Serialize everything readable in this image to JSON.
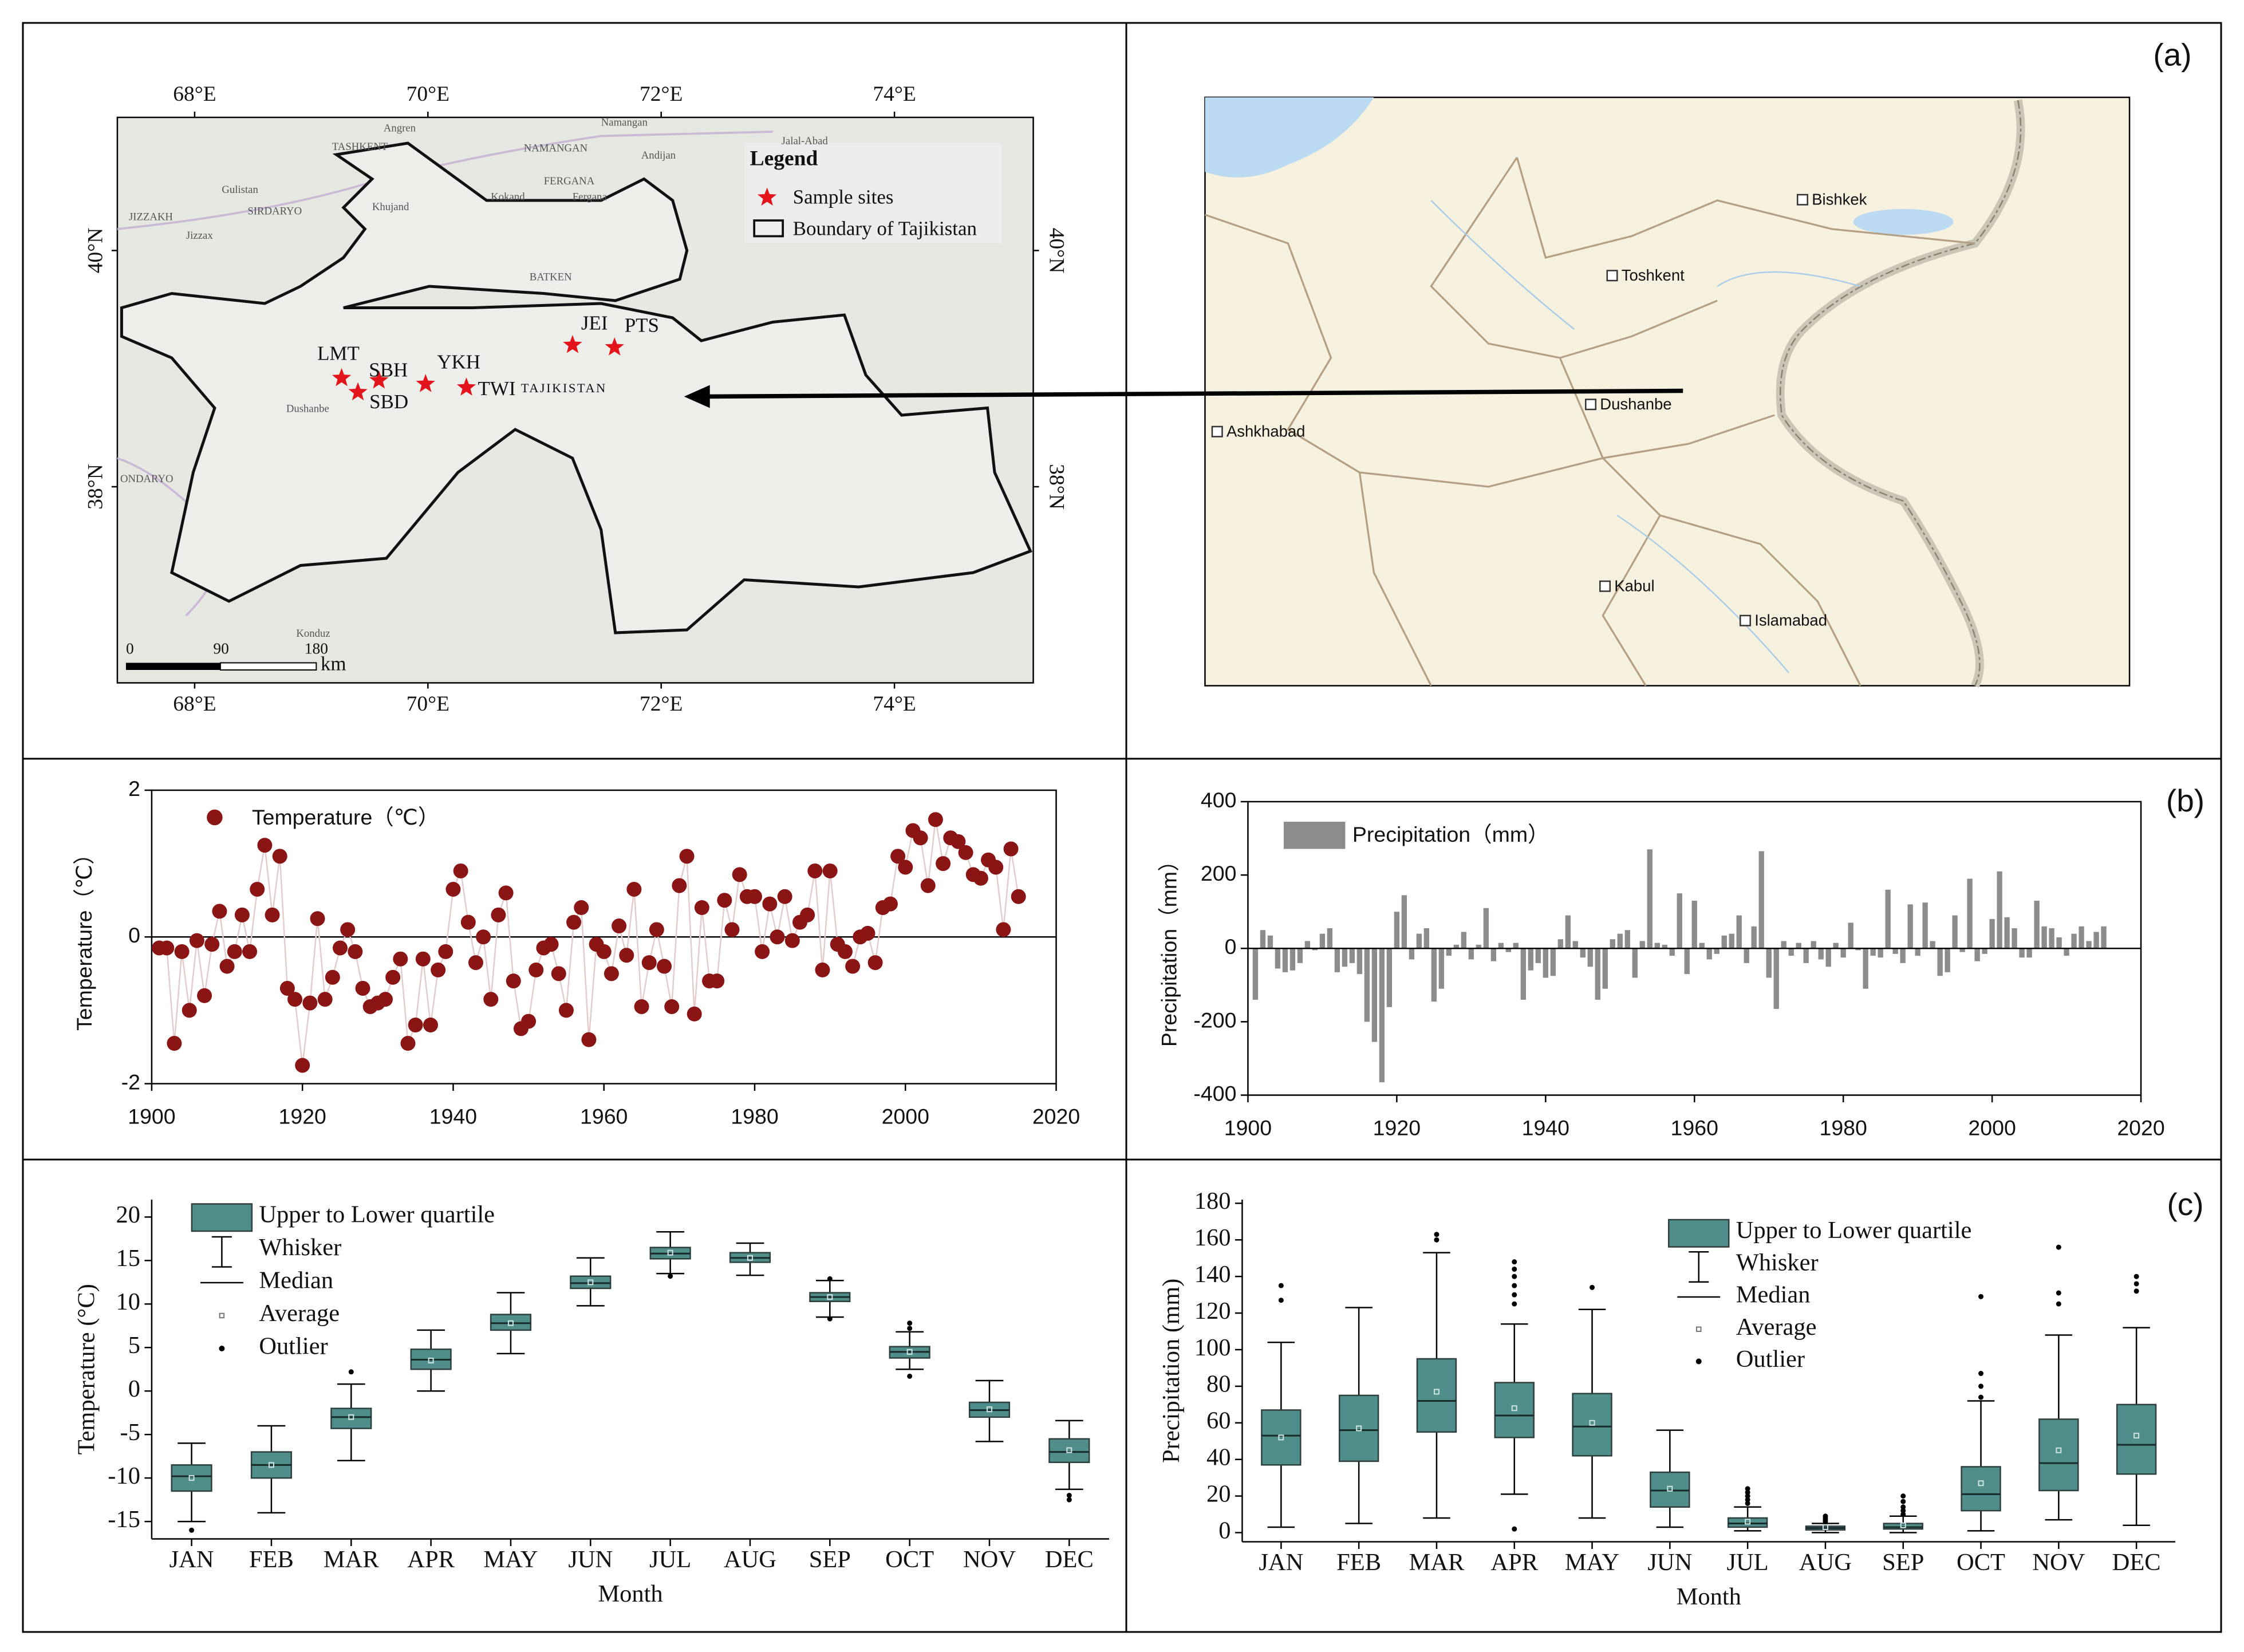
{
  "panel_labels": [
    "(a)",
    "(b)",
    "(c)"
  ],
  "map_left": {
    "lon_ticks": [
      {
        "value": 68,
        "label": "68°E"
      },
      {
        "value": 70,
        "label": "70°E"
      },
      {
        "value": 72,
        "label": "72°E"
      },
      {
        "value": 74,
        "label": "74°E"
      }
    ],
    "lat_ticks": [
      {
        "value": 40,
        "label": "40°N"
      },
      {
        "value": 38,
        "label": "38°N"
      }
    ],
    "legend_title": "Legend",
    "legend_items": [
      "Sample sites",
      "Boundary of Tajikistan"
    ],
    "sites": [
      {
        "name": "LMT",
        "lon": 69.26,
        "lat": 38.92
      },
      {
        "name": "SBH",
        "lon": 69.58,
        "lat": 38.9
      },
      {
        "name": "SBD",
        "lon": 69.4,
        "lat": 38.8
      },
      {
        "name": "YKH",
        "lon": 69.98,
        "lat": 38.87
      },
      {
        "name": "TWI",
        "lon": 70.33,
        "lat": 38.84
      },
      {
        "name": "JEI",
        "lon": 71.24,
        "lat": 39.2
      },
      {
        "name": "PTS",
        "lon": 71.6,
        "lat": 39.18
      }
    ],
    "country_label": "TAJIKISTAN",
    "place_labels": [
      "Angren",
      "Namangan",
      "Jalal-Abad",
      "TASHKENT",
      "NAMANGAN",
      "Andijan",
      "Gulistan",
      "FERGANA",
      "SIRDARYO",
      "Khujand",
      "Kokand",
      "Fergana",
      "JIZZAKH",
      "Jizzax",
      "BATKEN",
      "Dushanbe",
      "Konduz",
      "ONDARYO"
    ],
    "scale_bar": {
      "ticks": [
        0,
        90,
        180
      ],
      "unit": "km"
    }
  },
  "map_right": {
    "cities": [
      "Bishkek",
      "Toshkent",
      "Dushanbe",
      "Ashkhabad",
      "Kabul",
      "Islamabad"
    ]
  },
  "chart_data": [
    {
      "type": "line",
      "y_label": "Temperature（℃）",
      "x": [
        1901,
        1902,
        1903,
        1904,
        1905,
        1906,
        1907,
        1908,
        1909,
        1910,
        1911,
        1912,
        1913,
        1914,
        1915,
        1916,
        1917,
        1918,
        1919,
        1920,
        1921,
        1922,
        1923,
        1924,
        1925,
        1926,
        1927,
        1928,
        1929,
        1930,
        1931,
        1932,
        1933,
        1934,
        1935,
        1936,
        1937,
        1938,
        1939,
        1940,
        1941,
        1942,
        1943,
        1944,
        1945,
        1946,
        1947,
        1948,
        1949,
        1950,
        1951,
        1952,
        1953,
        1954,
        1955,
        1956,
        1957,
        1958,
        1959,
        1960,
        1961,
        1962,
        1963,
        1964,
        1965,
        1966,
        1967,
        1968,
        1969,
        1970,
        1971,
        1972,
        1973,
        1974,
        1975,
        1976,
        1977,
        1978,
        1979,
        1980,
        1981,
        1982,
        1983,
        1984,
        1985,
        1986,
        1987,
        1988,
        1989,
        1990,
        1991,
        1992,
        1993,
        1994,
        1995,
        1996,
        1997,
        1998,
        1999,
        2000,
        2001,
        2002,
        2003,
        2004,
        2005,
        2006,
        2007,
        2008,
        2009,
        2010,
        2011,
        2012,
        2013,
        2014,
        2015
      ],
      "series": [
        {
          "name": "Temperature（℃）",
          "color": "#8b1414",
          "line_color": "#e2cccc",
          "values": [
            -0.15,
            -0.15,
            -1.45,
            -0.2,
            -1.0,
            -0.05,
            -0.8,
            -0.1,
            0.35,
            -0.4,
            -0.2,
            0.3,
            -0.2,
            0.65,
            1.25,
            0.3,
            1.1,
            -0.7,
            -0.85,
            -1.75,
            -0.9,
            0.25,
            -0.85,
            -0.55,
            -0.15,
            0.1,
            -0.2,
            -0.7,
            -0.95,
            -0.9,
            -0.85,
            -0.55,
            -0.3,
            -1.45,
            -1.2,
            -0.3,
            -1.2,
            -0.45,
            -0.2,
            0.65,
            0.9,
            0.2,
            -0.35,
            0.0,
            -0.85,
            0.3,
            0.6,
            -0.6,
            -1.25,
            -1.15,
            -0.45,
            -0.15,
            -0.1,
            -0.5,
            -1.0,
            0.2,
            0.4,
            -1.4,
            -0.1,
            -0.2,
            -0.5,
            0.15,
            -0.25,
            0.65,
            -0.95,
            -0.35,
            0.1,
            -0.4,
            -0.95,
            0.7,
            1.1,
            -1.05,
            0.4,
            -0.6,
            -0.6,
            0.5,
            0.1,
            0.85,
            0.55,
            0.55,
            -0.2,
            0.45,
            0.0,
            0.55,
            -0.05,
            0.2,
            0.3,
            0.9,
            -0.45,
            0.9,
            -0.1,
            -0.2,
            -0.4,
            0.0,
            0.05,
            -0.35,
            0.4,
            0.45,
            1.1,
            0.95,
            1.45,
            1.35,
            0.7,
            1.6,
            1.0,
            1.35,
            1.3,
            1.15,
            0.85,
            0.8,
            1.05,
            0.95,
            0.1,
            1.2,
            0.55
          ]
        }
      ],
      "xlim": [
        1900,
        2020
      ],
      "xticks": [
        1900,
        1920,
        1940,
        1960,
        1980,
        2000,
        2020
      ],
      "ylim": [
        -2,
        2
      ],
      "yticks": [
        -2,
        0,
        2
      ]
    },
    {
      "type": "bar",
      "y_label": "Precipitation（mm）",
      "x": [
        1901,
        1902,
        1903,
        1904,
        1905,
        1906,
        1907,
        1908,
        1909,
        1910,
        1911,
        1912,
        1913,
        1914,
        1915,
        1916,
        1917,
        1918,
        1919,
        1920,
        1921,
        1922,
        1923,
        1924,
        1925,
        1926,
        1927,
        1928,
        1929,
        1930,
        1931,
        1932,
        1933,
        1934,
        1935,
        1936,
        1937,
        1938,
        1939,
        1940,
        1941,
        1942,
        1943,
        1944,
        1945,
        1946,
        1947,
        1948,
        1949,
        1950,
        1951,
        1952,
        1953,
        1954,
        1955,
        1956,
        1957,
        1958,
        1959,
        1960,
        1961,
        1962,
        1963,
        1964,
        1965,
        1966,
        1967,
        1968,
        1969,
        1970,
        1971,
        1972,
        1973,
        1974,
        1975,
        1976,
        1977,
        1978,
        1979,
        1980,
        1981,
        1982,
        1983,
        1984,
        1985,
        1986,
        1987,
        1988,
        1989,
        1990,
        1991,
        1992,
        1993,
        1994,
        1995,
        1996,
        1997,
        1998,
        1999,
        2000,
        2001,
        2002,
        2003,
        2004,
        2005,
        2006,
        2007,
        2008,
        2009,
        2010,
        2011,
        2012,
        2013,
        2014,
        2015
      ],
      "series": [
        {
          "name": "Precipitation（mm）",
          "color": "#8c8c8c",
          "values": [
            -140,
            50,
            35,
            -55,
            -65,
            -60,
            -40,
            20,
            -5,
            40,
            55,
            -65,
            -50,
            -40,
            -70,
            -200,
            -255,
            -365,
            -160,
            100,
            145,
            -30,
            40,
            55,
            -145,
            -110,
            -20,
            10,
            45,
            -30,
            10,
            110,
            -35,
            15,
            -10,
            15,
            -140,
            -60,
            -40,
            -80,
            -75,
            25,
            90,
            20,
            -25,
            -50,
            -140,
            -110,
            25,
            40,
            50,
            -80,
            20,
            270,
            15,
            10,
            -20,
            150,
            -70,
            130,
            15,
            -30,
            -15,
            35,
            40,
            90,
            -40,
            60,
            265,
            -80,
            -165,
            20,
            -20,
            15,
            -40,
            20,
            -30,
            -50,
            15,
            -25,
            70,
            -5,
            -110,
            -20,
            -25,
            160,
            -15,
            -40,
            120,
            -20,
            125,
            20,
            -75,
            -65,
            90,
            -10,
            190,
            -35,
            -15,
            80,
            210,
            85,
            55,
            -25,
            -25,
            130,
            60,
            55,
            30,
            -20,
            40,
            60,
            20,
            45,
            60
          ]
        }
      ],
      "xlim": [
        1900,
        2020
      ],
      "xticks": [
        1900,
        1920,
        1940,
        1960,
        1980,
        2000,
        2020
      ],
      "ylim": [
        -400,
        400
      ],
      "yticks": [
        -400,
        -200,
        0,
        200,
        400
      ]
    },
    {
      "type": "box",
      "y_label": "Temperature (°C)",
      "x_label": "Month",
      "categories": [
        "JAN",
        "FEB",
        "MAR",
        "APR",
        "MAY",
        "JUN",
        "JUL",
        "AUG",
        "SEP",
        "OCT",
        "NOV",
        "DEC"
      ],
      "legend": [
        "Upper to Lower quartile",
        "Whisker",
        "Median",
        "Average",
        "Outlier"
      ],
      "color": "#4f8e8b",
      "ylim": [
        -17,
        22
      ],
      "yticks": [
        -15,
        -10,
        -5,
        0,
        5,
        10,
        15,
        20
      ],
      "boxes": [
        {
          "whisker_low": -15,
          "q1": -11.5,
          "median": -9.8,
          "q3": -8.5,
          "whisker_high": -6,
          "mean": -10,
          "outliers": [
            -16
          ]
        },
        {
          "whisker_low": -14,
          "q1": -10,
          "median": -8.5,
          "q3": -7,
          "whisker_high": -4,
          "mean": -8.5,
          "outliers": []
        },
        {
          "whisker_low": -8,
          "q1": -4.3,
          "median": -3,
          "q3": -2,
          "whisker_high": 0.8,
          "mean": -3,
          "outliers": [
            2.2
          ]
        },
        {
          "whisker_low": 0,
          "q1": 2.5,
          "median": 3.6,
          "q3": 4.8,
          "whisker_high": 7,
          "mean": 3.5,
          "outliers": []
        },
        {
          "whisker_low": 4.3,
          "q1": 7,
          "median": 7.8,
          "q3": 8.8,
          "whisker_high": 11.3,
          "mean": 7.8,
          "outliers": []
        },
        {
          "whisker_low": 9.8,
          "q1": 11.8,
          "median": 12.4,
          "q3": 13.2,
          "whisker_high": 15.3,
          "mean": 12.5,
          "outliers": []
        },
        {
          "whisker_low": 13.5,
          "q1": 15.2,
          "median": 15.8,
          "q3": 16.5,
          "whisker_high": 18.3,
          "mean": 15.9,
          "outliers": [
            13.2
          ]
        },
        {
          "whisker_low": 13.3,
          "q1": 14.8,
          "median": 15.3,
          "q3": 15.9,
          "whisker_high": 17,
          "mean": 15.3,
          "outliers": []
        },
        {
          "whisker_low": 8.5,
          "q1": 10.3,
          "median": 10.8,
          "q3": 11.3,
          "whisker_high": 12.7,
          "mean": 10.8,
          "outliers": [
            8.3,
            12.9
          ]
        },
        {
          "whisker_low": 2.5,
          "q1": 3.8,
          "median": 4.5,
          "q3": 5.1,
          "whisker_high": 6.8,
          "mean": 4.5,
          "outliers": [
            1.7,
            7.2,
            7.8
          ]
        },
        {
          "whisker_low": -5.8,
          "q1": -3,
          "median": -2.2,
          "q3": -1.3,
          "whisker_high": 1.2,
          "mean": -2.1,
          "outliers": []
        },
        {
          "whisker_low": -11.3,
          "q1": -8.2,
          "median": -7,
          "q3": -5.5,
          "whisker_high": -3.4,
          "mean": -6.8,
          "outliers": [
            -12,
            -12.5
          ]
        }
      ]
    },
    {
      "type": "box",
      "y_label": "Precipitation (mm)",
      "x_label": "Month",
      "categories": [
        "JAN",
        "FEB",
        "MAR",
        "APR",
        "MAY",
        "JUN",
        "JUL",
        "AUG",
        "SEP",
        "OCT",
        "NOV",
        "DEC"
      ],
      "legend": [
        "Upper to Lower quartile",
        "Whisker",
        "Median",
        "Average",
        "Outlier"
      ],
      "color": "#4f8e8b",
      "ylim": [
        -5,
        182
      ],
      "yticks": [
        0,
        20,
        40,
        60,
        80,
        100,
        120,
        140,
        160,
        180
      ],
      "boxes": [
        {
          "whisker_low": 3,
          "q1": 37,
          "median": 53,
          "q3": 67,
          "whisker_high": 104,
          "mean": 52,
          "outliers": [
            127,
            135
          ]
        },
        {
          "whisker_low": 5,
          "q1": 39,
          "median": 56,
          "q3": 75,
          "whisker_high": 123,
          "mean": 57,
          "outliers": []
        },
        {
          "whisker_low": 8,
          "q1": 55,
          "median": 72,
          "q3": 95,
          "whisker_high": 153,
          "mean": 77,
          "outliers": [
            160,
            163
          ]
        },
        {
          "whisker_low": 21,
          "q1": 52,
          "median": 64,
          "q3": 82,
          "whisker_high": 114,
          "mean": 68,
          "outliers": [
            2,
            125,
            130,
            135,
            140,
            144,
            148
          ]
        },
        {
          "whisker_low": 8,
          "q1": 42,
          "median": 58,
          "q3": 76,
          "whisker_high": 122,
          "mean": 60,
          "outliers": [
            134
          ]
        },
        {
          "whisker_low": 3,
          "q1": 14,
          "median": 23,
          "q3": 33,
          "whisker_high": 56,
          "mean": 24,
          "outliers": []
        },
        {
          "whisker_low": 1,
          "q1": 3,
          "median": 5,
          "q3": 8,
          "whisker_high": 14,
          "mean": 6,
          "outliers": [
            16,
            18,
            20,
            22,
            24
          ]
        },
        {
          "whisker_low": 0,
          "q1": 1.5,
          "median": 2.5,
          "q3": 3.5,
          "whisker_high": 5,
          "mean": 3,
          "outliers": [
            6,
            7,
            8,
            9
          ]
        },
        {
          "whisker_low": 0,
          "q1": 2,
          "median": 3,
          "q3": 5,
          "whisker_high": 9,
          "mean": 4,
          "outliers": [
            10,
            12,
            14,
            17,
            20
          ]
        },
        {
          "whisker_low": 1,
          "q1": 12,
          "median": 21,
          "q3": 36,
          "whisker_high": 72,
          "mean": 27,
          "outliers": [
            74,
            80,
            87,
            129
          ]
        },
        {
          "whisker_low": 7,
          "q1": 23,
          "median": 38,
          "q3": 62,
          "whisker_high": 108,
          "mean": 45,
          "outliers": [
            125,
            131,
            156
          ]
        },
        {
          "whisker_low": 4,
          "q1": 32,
          "median": 48,
          "q3": 70,
          "whisker_high": 112,
          "mean": 53,
          "outliers": [
            132,
            136,
            140
          ]
        }
      ]
    }
  ]
}
